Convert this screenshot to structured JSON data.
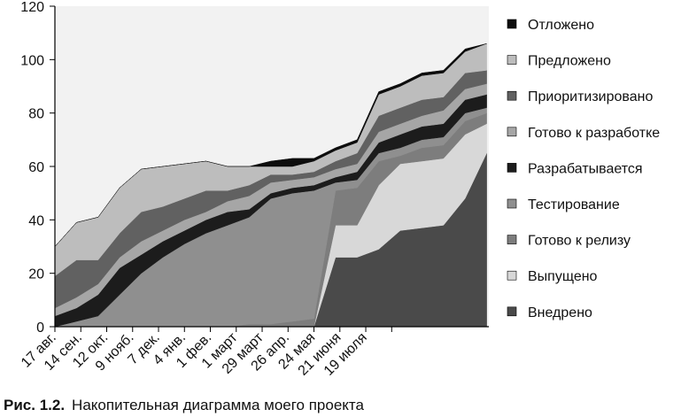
{
  "caption": {
    "prefix": "Рис. 1.2.",
    "text": "Накопительная диаграмма моего проекта"
  },
  "chart_data": {
    "type": "area",
    "stacked": true,
    "title": "",
    "xlabel": "",
    "ylabel": "",
    "ylim": [
      0,
      120
    ],
    "yticks": [
      0,
      20,
      40,
      60,
      80,
      100,
      120
    ],
    "x_range": [
      0,
      20.1
    ],
    "x_unit": "week",
    "x_tick_positions": [
      0,
      1.2,
      2.4,
      3.6,
      4.8,
      6.0,
      7.2,
      8.4,
      9.6,
      10.8,
      12.0,
      13.2,
      14.4,
      15.6
    ],
    "x_tick_labels": [
      "17 авг.",
      "14 сен.",
      "12 окт.",
      "9 нояб.",
      "7 дек.",
      "4 янв.",
      "1 фев.",
      "1 март",
      "29 март",
      "26 апр.",
      "24 мая",
      "21 июня",
      "19 июля",
      ""
    ],
    "grid": false,
    "legend_position": "right",
    "x": [
      0,
      1,
      2,
      3,
      4,
      5,
      6,
      7,
      8,
      9,
      10,
      11,
      12,
      13,
      14,
      15,
      16,
      17,
      18,
      19,
      20
    ],
    "series": [
      {
        "name": "Внедрено",
        "color": "#4a4a4a",
        "values": [
          0,
          0,
          0,
          0,
          0,
          0,
          0,
          0,
          0,
          0,
          0,
          0,
          0,
          26,
          26,
          29,
          36,
          37,
          38,
          48,
          65
        ]
      },
      {
        "name": "Выпущено",
        "color": "#d8d8d8",
        "values": [
          0,
          0,
          0,
          0,
          0,
          0,
          0,
          0,
          0,
          0,
          0,
          0,
          0,
          12,
          12,
          24,
          25,
          25,
          25,
          24,
          11
        ]
      },
      {
        "name": "Готово к релизу",
        "color": "#7d7d7d",
        "values": [
          0,
          0,
          0,
          0,
          0,
          0,
          0,
          0,
          0,
          1,
          1,
          2,
          3,
          13,
          14,
          9,
          3,
          5,
          5,
          5,
          4
        ]
      },
      {
        "name": "Тестирование",
        "color": "#8f8f8f",
        "values": [
          0,
          2,
          4,
          12,
          20,
          26,
          31,
          35,
          38,
          40,
          47,
          48,
          48,
          3,
          3,
          3,
          3,
          3,
          3,
          3,
          2
        ]
      },
      {
        "name": "Разрабатывается",
        "color": "#1c1c1c",
        "values": [
          4,
          5,
          8,
          10,
          7,
          6,
          5,
          5,
          5,
          3,
          2,
          2,
          2,
          2,
          3,
          4,
          5,
          5,
          5,
          5,
          5
        ]
      },
      {
        "name": "Готово к разработке",
        "color": "#a6a6a6",
        "values": [
          3,
          4,
          4,
          4,
          5,
          4,
          4,
          3,
          4,
          5,
          4,
          3,
          3,
          3,
          3,
          4,
          4,
          4,
          5,
          4,
          4
        ]
      },
      {
        "name": "Приоритизировано",
        "color": "#616161",
        "values": [
          12,
          14,
          9,
          9,
          11,
          9,
          8,
          8,
          4,
          4,
          3,
          2,
          2,
          3,
          4,
          6,
          6,
          6,
          5,
          6,
          5
        ]
      },
      {
        "name": "Предложено",
        "color": "#bdbdbd",
        "values": [
          11,
          14,
          16,
          17,
          16,
          15,
          13,
          11,
          9,
          7,
          3,
          3,
          4,
          4,
          4,
          8,
          8,
          9,
          9,
          8,
          10
        ]
      },
      {
        "name": "Отложено",
        "color": "#0d0d0d",
        "values": [
          0,
          0,
          0,
          0,
          0,
          0,
          0,
          0,
          0,
          0,
          2,
          3,
          1,
          1,
          1,
          1,
          1,
          1,
          1,
          1,
          0
        ]
      }
    ]
  }
}
